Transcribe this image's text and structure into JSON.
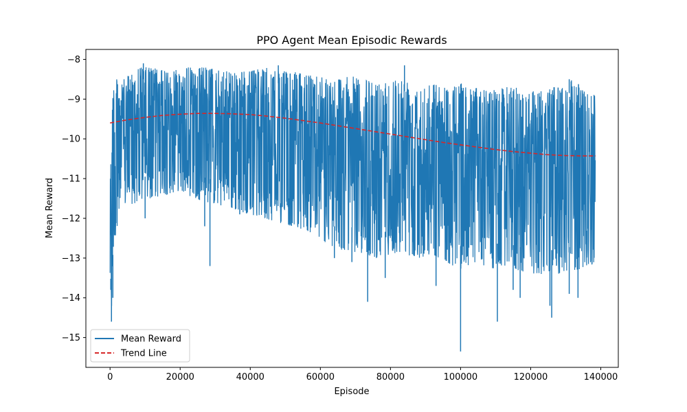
{
  "chart_data": {
    "type": "line",
    "title": "PPO Agent Mean Episodic Rewards",
    "xlabel": "Episode",
    "ylabel": "Mean Reward",
    "xlim": [
      -6900,
      145000
    ],
    "ylim": [
      -15.75,
      -7.75
    ],
    "xticks": [
      0,
      20000,
      40000,
      60000,
      80000,
      100000,
      120000,
      140000
    ],
    "xtick_labels": [
      "0",
      "20000",
      "40000",
      "60000",
      "80000",
      "100000",
      "120000",
      "140000"
    ],
    "yticks": [
      -8,
      -9,
      -10,
      -11,
      -12,
      -13,
      -14,
      -15
    ],
    "ytick_labels": [
      "−8",
      "−9",
      "−10",
      "−11",
      "−12",
      "−13",
      "−14",
      "−15"
    ],
    "grid": false,
    "legend_position": "lower-left",
    "series": [
      {
        "name": "Mean Reward",
        "color": "#1f77b4",
        "style": "solid",
        "x_range": [
          0,
          138500
        ],
        "envelope": {
          "x": [
            0,
            500,
            1000,
            2000,
            4000,
            8000,
            12000,
            16000,
            20000,
            24000,
            28000,
            32000,
            36000,
            40000,
            44000,
            48000,
            52000,
            56000,
            60000,
            64000,
            68000,
            72000,
            76000,
            80000,
            84000,
            88000,
            92000,
            96000,
            100000,
            104000,
            108000,
            112000,
            116000,
            120000,
            124000,
            128000,
            132000,
            136000,
            138500
          ],
          "upper": [
            -8.9,
            -8.6,
            -8.5,
            -8.5,
            -8.5,
            -8.2,
            -8.2,
            -8.3,
            -8.2,
            -8.2,
            -8.2,
            -8.3,
            -8.3,
            -8.3,
            -8.2,
            -8.3,
            -8.3,
            -8.4,
            -8.4,
            -8.5,
            -8.4,
            -8.5,
            -8.6,
            -8.5,
            -8.5,
            -8.6,
            -8.6,
            -8.7,
            -8.6,
            -8.7,
            -8.8,
            -8.7,
            -8.7,
            -8.8,
            -8.7,
            -8.7,
            -8.5,
            -8.8,
            -8.9
          ],
          "lower": [
            -13.8,
            -14.6,
            -12.8,
            -12.2,
            -11.7,
            -11.6,
            -11.5,
            -11.4,
            -11.3,
            -11.5,
            -11.6,
            -11.7,
            -11.8,
            -11.9,
            -12.0,
            -12.1,
            -12.2,
            -12.3,
            -12.5,
            -12.8,
            -12.8,
            -12.9,
            -13.0,
            -12.9,
            -12.9,
            -13.0,
            -12.9,
            -13.1,
            -13.3,
            -13.1,
            -13.3,
            -13.2,
            -13.3,
            -13.4,
            -13.4,
            -13.4,
            -13.3,
            -13.3,
            -13.1
          ]
        },
        "spikes": [
          {
            "x": 200,
            "y": -13.8
          },
          {
            "x": 400,
            "y": -14.6
          },
          {
            "x": 800,
            "y": -14.0
          },
          {
            "x": 10000,
            "y": -12.0
          },
          {
            "x": 27000,
            "y": -12.2
          },
          {
            "x": 28500,
            "y": -13.2
          },
          {
            "x": 37000,
            "y": -11.9
          },
          {
            "x": 64000,
            "y": -13.0
          },
          {
            "x": 69000,
            "y": -13.1
          },
          {
            "x": 73500,
            "y": -14.1
          },
          {
            "x": 78500,
            "y": -13.5
          },
          {
            "x": 93000,
            "y": -13.7
          },
          {
            "x": 100000,
            "y": -15.35
          },
          {
            "x": 110500,
            "y": -14.6
          },
          {
            "x": 115000,
            "y": -13.8
          },
          {
            "x": 117000,
            "y": -14.0
          },
          {
            "x": 126000,
            "y": -14.5
          },
          {
            "x": 125500,
            "y": -14.2
          },
          {
            "x": 131000,
            "y": -13.9
          },
          {
            "x": 133500,
            "y": -14.0
          }
        ],
        "peaks": [
          {
            "x": 9500,
            "y": -8.1
          },
          {
            "x": 48000,
            "y": -8.15
          },
          {
            "x": 84000,
            "y": -8.15
          },
          {
            "x": 131000,
            "y": -8.5
          }
        ]
      },
      {
        "name": "Trend Line",
        "color": "#d62728",
        "style": "dashed",
        "x": [
          0,
          5000,
          10000,
          15000,
          20000,
          25000,
          30000,
          35000,
          40000,
          45000,
          50000,
          55000,
          60000,
          65000,
          70000,
          75000,
          80000,
          85000,
          90000,
          95000,
          100000,
          105000,
          110000,
          115000,
          120000,
          125000,
          130000,
          135000,
          138500
        ],
        "values": [
          -9.6,
          -9.52,
          -9.46,
          -9.41,
          -9.38,
          -9.36,
          -9.36,
          -9.37,
          -9.39,
          -9.43,
          -9.48,
          -9.54,
          -9.6,
          -9.67,
          -9.74,
          -9.81,
          -9.88,
          -9.95,
          -10.02,
          -10.09,
          -10.15,
          -10.21,
          -10.27,
          -10.32,
          -10.36,
          -10.4,
          -10.42,
          -10.43,
          -10.43
        ]
      }
    ]
  }
}
